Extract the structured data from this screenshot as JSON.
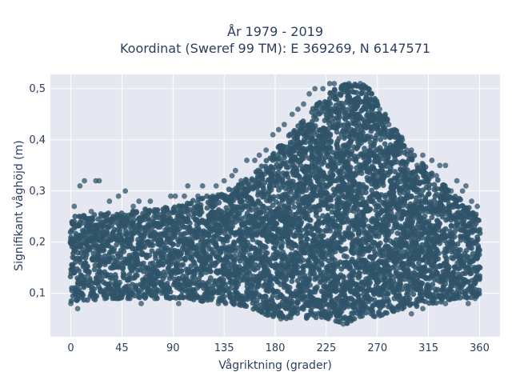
{
  "chart_data": {
    "type": "scatter",
    "title_line1": "År 1979 - 2019",
    "title_line2": "Koordinat (Sweref 99 TM): E 369269, N 6147571",
    "xlabel": "Vågriktning (grader)",
    "ylabel": "Signifikant våghöjd (m)",
    "xlim": [
      -18,
      378
    ],
    "ylim": [
      0.015,
      0.528
    ],
    "x_ticks": [
      0,
      45,
      90,
      135,
      180,
      225,
      270,
      315,
      360
    ],
    "x_tick_labels": [
      "0",
      "45",
      "90",
      "135",
      "180",
      "225",
      "270",
      "315",
      "360"
    ],
    "y_ticks": [
      0.1,
      0.2,
      0.3,
      0.4,
      0.5
    ],
    "y_tick_labels": [
      "0,1",
      "0,2",
      "0,3",
      "0,4",
      "0,5"
    ],
    "marker_color": "#2f5468",
    "grid": true,
    "background_color": "#e5e8f1",
    "envelope": {
      "description_points": [
        {
          "x": 0,
          "y_min": 0.085,
          "y_max": 0.25
        },
        {
          "x": 45,
          "y_min": 0.09,
          "y_max": 0.26
        },
        {
          "x": 90,
          "y_min": 0.09,
          "y_max": 0.27
        },
        {
          "x": 135,
          "y_min": 0.08,
          "y_max": 0.3
        },
        {
          "x": 160,
          "y_min": 0.07,
          "y_max": 0.33
        },
        {
          "x": 180,
          "y_min": 0.05,
          "y_max": 0.38
        },
        {
          "x": 200,
          "y_min": 0.05,
          "y_max": 0.43
        },
        {
          "x": 225,
          "y_min": 0.05,
          "y_max": 0.49
        },
        {
          "x": 240,
          "y_min": 0.04,
          "y_max": 0.51
        },
        {
          "x": 260,
          "y_min": 0.05,
          "y_max": 0.51
        },
        {
          "x": 280,
          "y_min": 0.06,
          "y_max": 0.44
        },
        {
          "x": 300,
          "y_min": 0.07,
          "y_max": 0.38
        },
        {
          "x": 320,
          "y_min": 0.08,
          "y_max": 0.33
        },
        {
          "x": 345,
          "y_min": 0.09,
          "y_max": 0.28
        },
        {
          "x": 360,
          "y_min": 0.09,
          "y_max": 0.25
        }
      ]
    },
    "outliers": [
      [
        0,
        0.08
      ],
      [
        3,
        0.27
      ],
      [
        6,
        0.07
      ],
      [
        8,
        0.31
      ],
      [
        12,
        0.32
      ],
      [
        18,
        0.26
      ],
      [
        20,
        0.09
      ],
      [
        22,
        0.32
      ],
      [
        25,
        0.32
      ],
      [
        28,
        0.24
      ],
      [
        30,
        0.09
      ],
      [
        34,
        0.28
      ],
      [
        40,
        0.09
      ],
      [
        42,
        0.29
      ],
      [
        48,
        0.3
      ],
      [
        52,
        0.1
      ],
      [
        55,
        0.27
      ],
      [
        60,
        0.28
      ],
      [
        62,
        0.08
      ],
      [
        70,
        0.28
      ],
      [
        74,
        0.09
      ],
      [
        80,
        0.1
      ],
      [
        88,
        0.29
      ],
      [
        92,
        0.29
      ],
      [
        95,
        0.08
      ],
      [
        100,
        0.29
      ],
      [
        103,
        0.31
      ],
      [
        106,
        0.09
      ],
      [
        112,
        0.29
      ],
      [
        116,
        0.31
      ],
      [
        120,
        0.1
      ],
      [
        125,
        0.29
      ],
      [
        128,
        0.31
      ],
      [
        135,
        0.32
      ],
      [
        142,
        0.33
      ],
      [
        145,
        0.34
      ],
      [
        150,
        0.32
      ],
      [
        155,
        0.36
      ],
      [
        162,
        0.36
      ],
      [
        166,
        0.37
      ],
      [
        172,
        0.38
      ],
      [
        178,
        0.41
      ],
      [
        183,
        0.42
      ],
      [
        188,
        0.43
      ],
      [
        195,
        0.45
      ],
      [
        200,
        0.46
      ],
      [
        205,
        0.47
      ],
      [
        210,
        0.49
      ],
      [
        215,
        0.5
      ],
      [
        222,
        0.5
      ],
      [
        228,
        0.51
      ],
      [
        232,
        0.51
      ],
      [
        245,
        0.51
      ],
      [
        255,
        0.51
      ],
      [
        262,
        0.5
      ],
      [
        265,
        0.49
      ],
      [
        270,
        0.47
      ],
      [
        272,
        0.46
      ],
      [
        276,
        0.44
      ],
      [
        280,
        0.43
      ],
      [
        285,
        0.42
      ],
      [
        288,
        0.41
      ],
      [
        292,
        0.4
      ],
      [
        296,
        0.38
      ],
      [
        300,
        0.38
      ],
      [
        305,
        0.35
      ],
      [
        310,
        0.37
      ],
      [
        318,
        0.36
      ],
      [
        322,
        0.33
      ],
      [
        325,
        0.35
      ],
      [
        330,
        0.35
      ],
      [
        335,
        0.3
      ],
      [
        340,
        0.32
      ],
      [
        345,
        0.3
      ],
      [
        348,
        0.31
      ],
      [
        353,
        0.28
      ],
      [
        358,
        0.27
      ],
      [
        240,
        0.04
      ],
      [
        248,
        0.05
      ],
      [
        215,
        0.06
      ],
      [
        185,
        0.05
      ],
      [
        195,
        0.06
      ],
      [
        175,
        0.07
      ],
      [
        170,
        0.08
      ],
      [
        300,
        0.06
      ],
      [
        310,
        0.07
      ],
      [
        330,
        0.08
      ],
      [
        350,
        0.08
      ],
      [
        356,
        0.09
      ],
      [
        20,
        0.1
      ],
      [
        150,
        0.09
      ],
      [
        155,
        0.1
      ],
      [
        140,
        0.1
      ],
      [
        130,
        0.08
      ]
    ]
  }
}
